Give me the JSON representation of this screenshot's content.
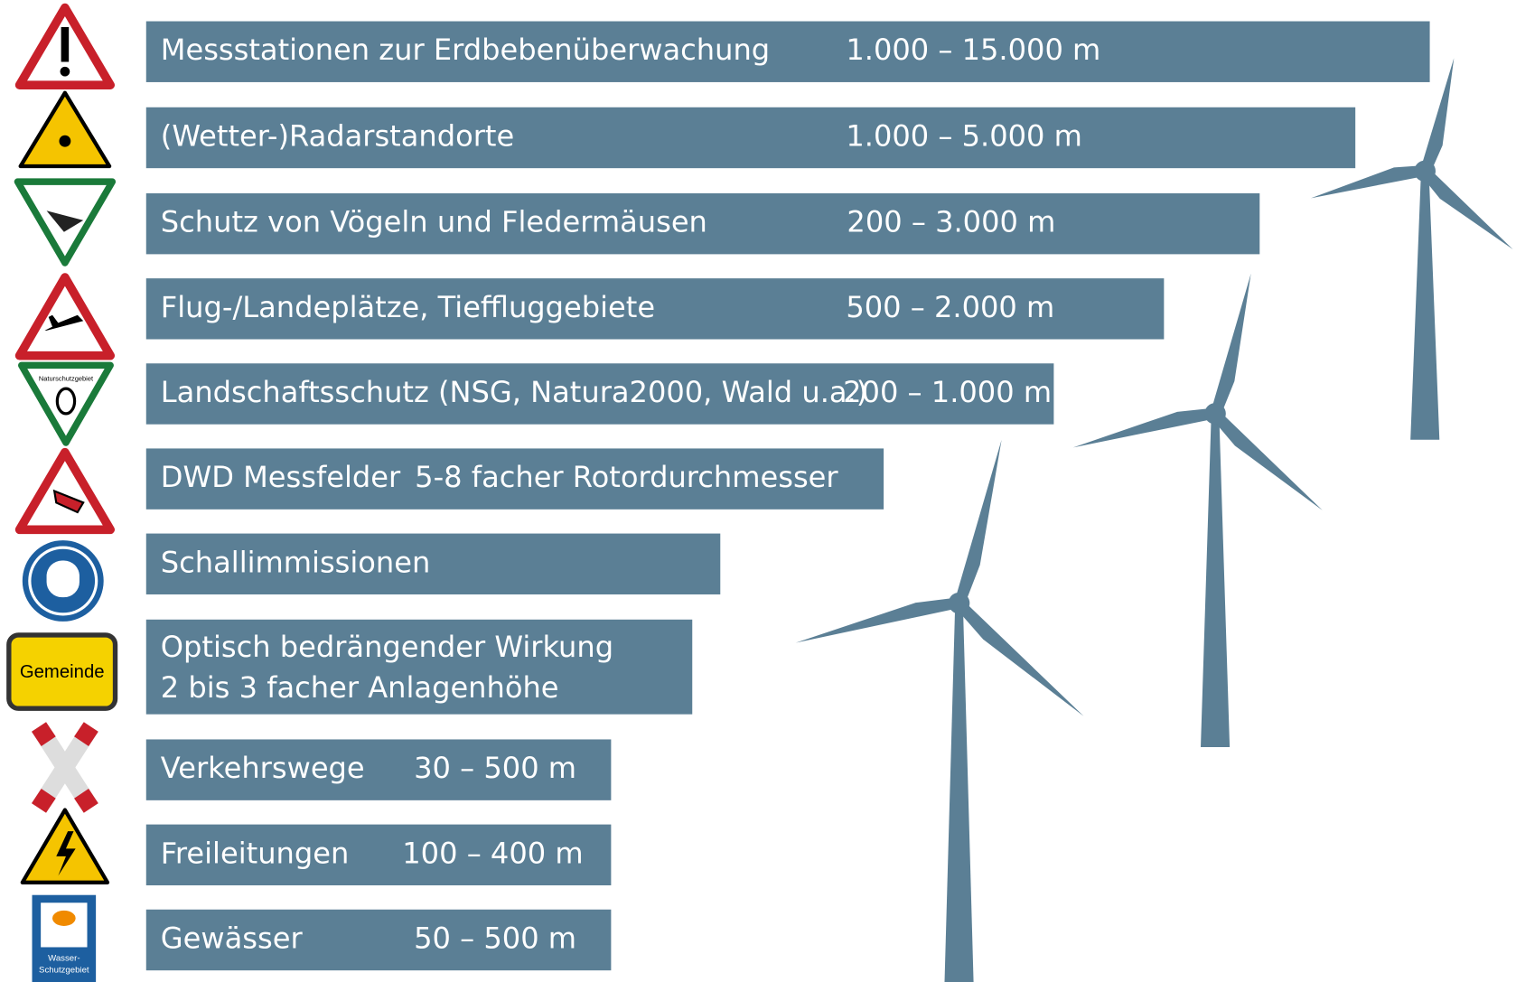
{
  "rows": [
    {
      "label": "Messstationen zur Erdbebenüberwachung",
      "value": "1.000 – 15.000 m"
    },
    {
      "label": "(Wetter-)Radarstandorte",
      "value": "1.000 – 5.000 m"
    },
    {
      "label": "Schutz von Vögeln und Fledermäusen",
      "value": "200 – 3.000 m"
    },
    {
      "label": "Flug-/Landeplätze, Tieffluggebiete",
      "value": "500 – 2.000 m"
    },
    {
      "label": "Landschaftsschutz (NSG, Natura2000, Wald u.a.)",
      "value": "200 – 1.000 m"
    },
    {
      "label": "DWD Messfelder",
      "value": "5-8 facher Rotordurchmesser"
    },
    {
      "label": "Schallimmissionen"
    },
    {
      "label_lines": [
        "Optisch bedrängender Wirkung",
        "2 bis 3 facher Anlagenhöhe"
      ]
    },
    {
      "label": "Verkehrswege",
      "value": "30 – 500 m"
    },
    {
      "label": "Freileitungen",
      "value": "100 – 400 m"
    },
    {
      "label": "Gewässer",
      "value": "50 – 500 m"
    }
  ],
  "signs": {
    "naturschutz": "Naturschutzgebiet",
    "gemeinde": "Gemeinde",
    "wasser_lines": [
      "Wasser-",
      "Schutzgebiet"
    ]
  }
}
